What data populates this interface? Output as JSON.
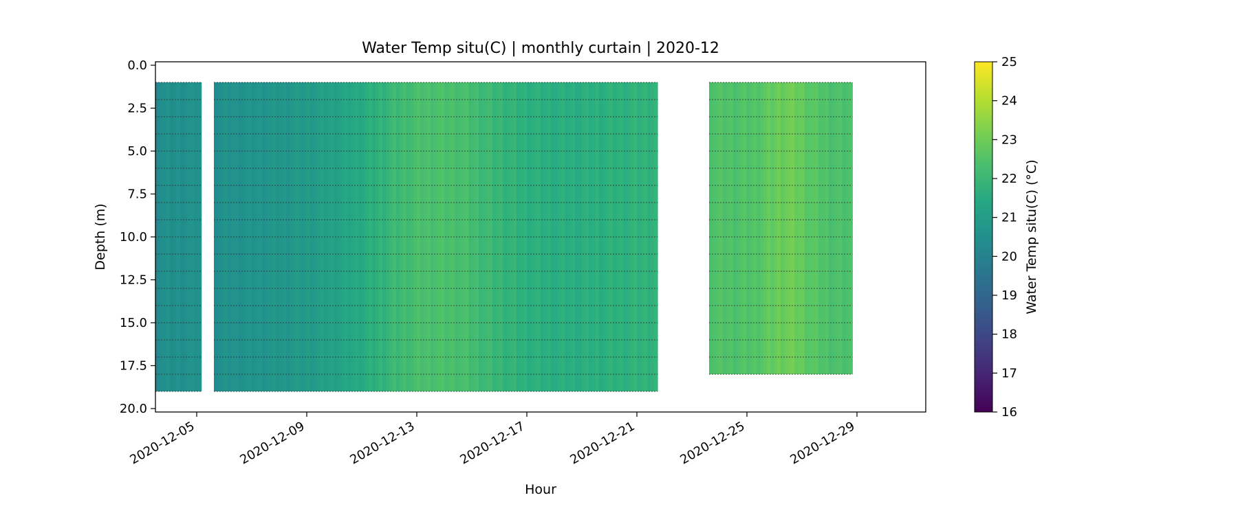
{
  "chart_data": {
    "type": "heatmap",
    "title": "Water Temp situ(C) | monthly curtain | 2020-12",
    "xlabel": "Hour",
    "ylabel": "Depth (m)",
    "colorbar_label": "Water Temp situ(C) (°C)",
    "colormap": "viridis",
    "x_range": [
      "2020-12-03 12:00",
      "2020-12-31 12:00"
    ],
    "y_range": [
      20.2,
      -0.2
    ],
    "y_inverted": true,
    "x_ticks": [
      "2020-12-05",
      "2020-12-09",
      "2020-12-13",
      "2020-12-17",
      "2020-12-21",
      "2020-12-25",
      "2020-12-29"
    ],
    "y_ticks": [
      "0.0",
      "2.5",
      "5.0",
      "7.5",
      "10.0",
      "12.5",
      "15.0",
      "17.5",
      "20.0"
    ],
    "colorbar_ticks": [
      "16",
      "17",
      "18",
      "19",
      "20",
      "21",
      "22",
      "23",
      "24",
      "25"
    ],
    "color_range": [
      16,
      25
    ],
    "sensor_depths_m": [
      1,
      2,
      3,
      4,
      5,
      6,
      7,
      8,
      9,
      10,
      11,
      12,
      13,
      14,
      15,
      16,
      17,
      18,
      19
    ],
    "segments": [
      {
        "start": "2020-12-03 12:00",
        "end": "2020-12-05 04:00",
        "depth_top": 1.0,
        "depth_bottom": 19.0,
        "temp_start": 20.4,
        "temp_end": 20.6
      },
      {
        "start": "2020-12-05 15:00",
        "end": "2020-12-21 18:00",
        "depth_top": 1.0,
        "depth_bottom": 19.0,
        "temp_start": 20.5,
        "temp_end": 21.9
      },
      {
        "start": "2020-12-23 15:00",
        "end": "2020-12-28 20:00",
        "depth_top": 1.0,
        "depth_bottom": 18.0,
        "temp_start": 22.5,
        "temp_end": 22.4
      }
    ],
    "warm_peak": {
      "time": "2020-12-13 12:00",
      "temp": 22.4
    },
    "late_warm_peak": {
      "time": "2020-12-26 12:00",
      "temp": 23.0
    }
  },
  "colors": {
    "viridis_low": "#440154",
    "viridis_mid": "#21918c",
    "viridis_high": "#fde725",
    "sensor_line": "#333333"
  }
}
